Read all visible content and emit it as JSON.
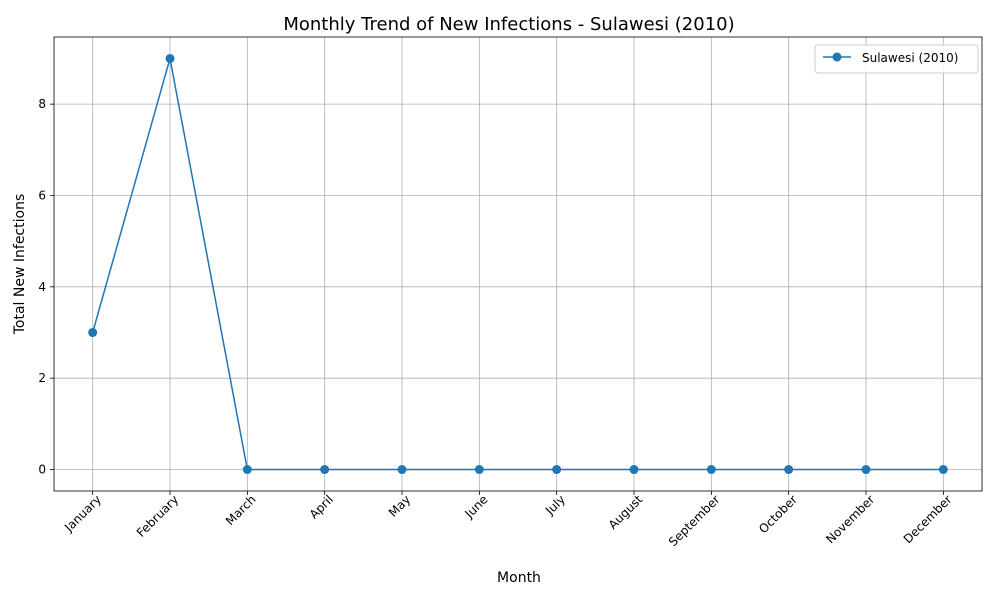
{
  "chart_data": {
    "type": "line",
    "title": "Monthly Trend of New Infections - Sulawesi (2010)",
    "xlabel": "Month",
    "ylabel": "Total New Infections",
    "categories": [
      "January",
      "February",
      "March",
      "April",
      "May",
      "June",
      "July",
      "August",
      "September",
      "October",
      "November",
      "December"
    ],
    "series": [
      {
        "name": "Sulawesi (2010)",
        "values": [
          3,
          9,
          0,
          0,
          0,
          0,
          0,
          0,
          0,
          0,
          0,
          0
        ],
        "color": "#1f77b4",
        "marker": "circle"
      }
    ],
    "ylim": [
      -0.47,
      9.47
    ],
    "yticks": [
      0,
      2,
      4,
      6,
      8
    ],
    "grid": true,
    "legend": "top-right",
    "xtick_rotation": 45
  }
}
